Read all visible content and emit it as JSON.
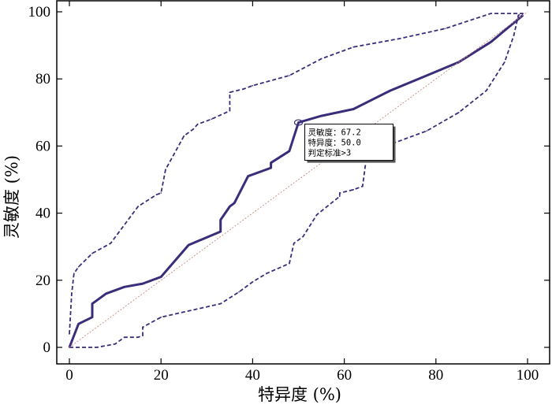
{
  "chart_data": {
    "type": "line",
    "xlabel": "特异度 (%)",
    "ylabel": "灵敏度 (%)",
    "xlim": [
      0,
      100
    ],
    "ylim": [
      0,
      100
    ],
    "xticks": [
      0,
      20,
      40,
      60,
      80,
      100
    ],
    "yticks": [
      0,
      20,
      40,
      60,
      80,
      100
    ],
    "grid": false,
    "colors": {
      "curve": "#3a2d7a",
      "reference": "#c9897f",
      "axis": "#000000"
    },
    "series": [
      {
        "role": "roc-curve",
        "style": "solid",
        "x": [
          0,
          2,
          5,
          5,
          8,
          12,
          16,
          20,
          26,
          33,
          33,
          35,
          36,
          39,
          44,
          44,
          48,
          50,
          55,
          62,
          70,
          78,
          85,
          92,
          99
        ],
        "y": [
          0,
          7,
          9,
          13,
          16,
          18,
          19,
          21,
          30.5,
          34.5,
          38,
          42,
          43,
          51,
          53.5,
          55,
          58.5,
          67,
          69,
          71,
          76.5,
          81,
          85,
          91,
          99
        ]
      },
      {
        "role": "upper-confidence-bound",
        "style": "dashed",
        "x": [
          0,
          0.5,
          1,
          2,
          5,
          9,
          15,
          19,
          20,
          21,
          25,
          27,
          28,
          31,
          35,
          35,
          38,
          40,
          48,
          55,
          62,
          72,
          82,
          92,
          99
        ],
        "y": [
          4,
          16,
          22,
          24,
          28,
          31,
          42,
          45.5,
          46,
          53,
          63,
          65,
          66.5,
          68,
          70.5,
          76,
          77,
          78,
          81,
          86,
          89.5,
          92,
          95,
          99.5,
          99.5
        ]
      },
      {
        "role": "lower-confidence-bound",
        "style": "dashed",
        "x": [
          0,
          6,
          10,
          12,
          15,
          16,
          16,
          20,
          33,
          37,
          40,
          43,
          48,
          49,
          51,
          54,
          59,
          59,
          62,
          64,
          65,
          70,
          78,
          85,
          91,
          95,
          97,
          98,
          99
        ],
        "y": [
          0,
          0,
          1,
          3,
          3,
          3.5,
          6,
          9,
          13,
          16.5,
          19.5,
          22,
          25,
          31,
          33,
          39.5,
          45,
          46,
          47,
          48,
          58.5,
          60.5,
          64.5,
          70,
          76.5,
          85,
          93,
          99,
          99.5
        ]
      },
      {
        "role": "reference-line",
        "style": "dotted",
        "x": [
          0,
          100
        ],
        "y": [
          0,
          100
        ]
      }
    ],
    "annotation": {
      "x": 50,
      "y": 67,
      "lines": [
        "灵敏度：67.2",
        "特异度：50.0",
        "判定标准>3"
      ]
    }
  }
}
